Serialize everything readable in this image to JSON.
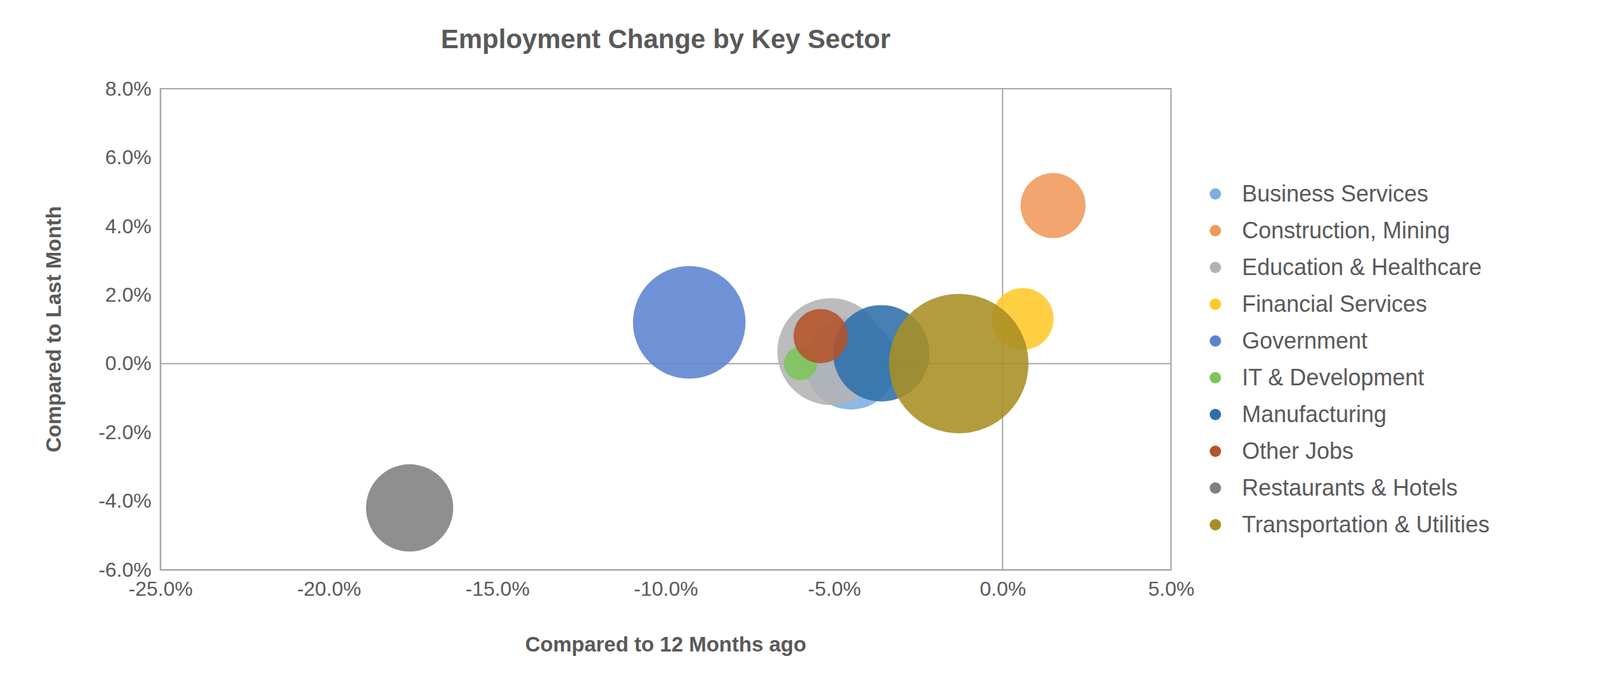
{
  "chart_data": {
    "type": "bubble",
    "title": "Employment Change by Key Sector",
    "x_label": "Compared to 12 Months ago",
    "y_label": "Compared to Last Month",
    "xlim": [
      -25,
      5
    ],
    "xticks": [
      {
        "value": -25,
        "label": "-25.0%"
      },
      {
        "value": -20,
        "label": "-20.0%"
      },
      {
        "value": -15,
        "label": "-15.0%"
      },
      {
        "value": -10,
        "label": "-10.0%"
      },
      {
        "value": -5,
        "label": "-5.0%"
      },
      {
        "value": 0,
        "label": "0.0%"
      },
      {
        "value": 5,
        "label": "5.0%"
      }
    ],
    "ylim": [
      -6,
      8
    ],
    "yticks": [
      {
        "value": -6,
        "label": "-6.0%"
      },
      {
        "value": -4,
        "label": "-4.0%"
      },
      {
        "value": -2,
        "label": "-2.0%"
      },
      {
        "value": 0,
        "label": "0.0%"
      },
      {
        "value": 2,
        "label": "2.0%"
      },
      {
        "value": 4,
        "label": "4.0%"
      },
      {
        "value": 6,
        "label": "6.0%"
      },
      {
        "value": 8,
        "label": "8.0%"
      }
    ],
    "grid": false,
    "legend": "right",
    "series": [
      {
        "name": "Business Services",
        "color": "#7eaee0",
        "x": [
          -4.5
        ],
        "values": [
          0.0
        ],
        "sizes": [
          20
        ]
      },
      {
        "name": "Construction, Mining",
        "color": "#f0995a",
        "x": [
          1.5
        ],
        "values": [
          4.6
        ],
        "sizes": [
          10
        ]
      },
      {
        "name": "Education & Healthcare",
        "color": "#b3b3b3",
        "x": [
          -5.1
        ],
        "values": [
          0.35
        ],
        "sizes": [
          27
        ]
      },
      {
        "name": "Financial Services",
        "color": "#ffc829",
        "x": [
          0.6
        ],
        "values": [
          1.3
        ],
        "sizes": [
          9
        ]
      },
      {
        "name": "Government",
        "color": "#5b83d0",
        "x": [
          -9.3
        ],
        "values": [
          1.2
        ],
        "sizes": [
          30
        ]
      },
      {
        "name": "IT & Development",
        "color": "#7cc55a",
        "x": [
          -6.0
        ],
        "values": [
          0.0
        ],
        "sizes": [
          2.6
        ]
      },
      {
        "name": "Manufacturing",
        "color": "#2f6eaa",
        "x": [
          -3.6
        ],
        "values": [
          0.3
        ],
        "sizes": [
          22
        ]
      },
      {
        "name": "Other Jobs",
        "color": "#b5532a",
        "x": [
          -5.4
        ],
        "values": [
          0.8
        ],
        "sizes": [
          7
        ]
      },
      {
        "name": "Restaurants & Hotels",
        "color": "#7f7f7f",
        "x": [
          -17.6
        ],
        "values": [
          -4.2
        ],
        "sizes": [
          18
        ]
      },
      {
        "name": "Transportation & Utilities",
        "color": "#a88e22",
        "x": [
          -1.3
        ],
        "values": [
          0.0
        ],
        "sizes": [
          46
        ]
      }
    ]
  }
}
